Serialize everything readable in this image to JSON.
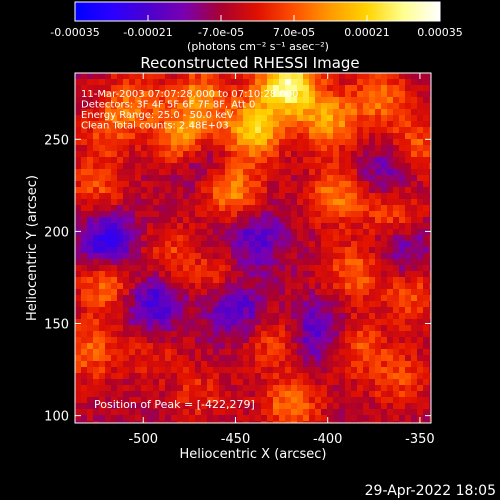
{
  "colorbar": {
    "ticks": [
      {
        "value": -0.00035,
        "label": "-0.00035"
      },
      {
        "value": -0.00021,
        "label": "-0.00021"
      },
      {
        "value": -7e-05,
        "label": "-7.0e-05"
      },
      {
        "value": 7e-05,
        "label": "7.0e-05"
      },
      {
        "value": 0.00021,
        "label": "0.00021"
      },
      {
        "value": 0.00035,
        "label": "0.00035"
      }
    ],
    "range": [
      -0.00035,
      0.00035
    ],
    "unit_label": "(photons cm⁻² s⁻¹ asec⁻²)",
    "colors": [
      "#0000ff",
      "#2a00ff",
      "#4b00d0",
      "#7a00b0",
      "#a80030",
      "#e01000",
      "#ff5000",
      "#ff9a00",
      "#ffd400",
      "#ffff90",
      "#ffffff"
    ]
  },
  "chart_data": {
    "type": "heatmap",
    "title": "Reconstructed RHESSI Image",
    "xlabel": "Heliocentric X (arcsec)",
    "ylabel": "Heliocentric Y (arcsec)",
    "xlim": [
      -537,
      -344
    ],
    "ylim": [
      96,
      286
    ],
    "xticks": [
      -500,
      -450,
      -400,
      -350
    ],
    "yticks": [
      100,
      150,
      200,
      250
    ],
    "annotations": [
      "11-Mar-2003 07:07:28.000 to 07:10:28.000",
      "Detectors: 3F 4F 5F 6F 7F 8F, Att 0",
      "Energy Range: 25.0 - 50.0 keV",
      "Clean     Total counts: 2.48E+03"
    ],
    "peak_label": "Position of Peak = [-422,279]",
    "peak": [
      -422,
      279
    ],
    "grid": false,
    "hot_spots": [
      {
        "x": -520,
        "y": 255,
        "v": 0.0001
      },
      {
        "x": -505,
        "y": 270,
        "v": 0.00015
      },
      {
        "x": -478,
        "y": 250,
        "v": 0.00022
      },
      {
        "x": -468,
        "y": 273,
        "v": 0.00018
      },
      {
        "x": -440,
        "y": 255,
        "v": 0.00026
      },
      {
        "x": -422,
        "y": 279,
        "v": 0.00035
      },
      {
        "x": -400,
        "y": 260,
        "v": 0.0002
      },
      {
        "x": -372,
        "y": 272,
        "v": 0.00016
      },
      {
        "x": -352,
        "y": 245,
        "v": 0.00014
      },
      {
        "x": -452,
        "y": 222,
        "v": 0.00019
      },
      {
        "x": -395,
        "y": 220,
        "v": 0.00017
      },
      {
        "x": -365,
        "y": 210,
        "v": 0.00013
      },
      {
        "x": -525,
        "y": 225,
        "v": 0.00012
      },
      {
        "x": -520,
        "y": 170,
        "v": 0.00016
      },
      {
        "x": -528,
        "y": 135,
        "v": 0.00014
      },
      {
        "x": -485,
        "y": 188,
        "v": 0.0001
      },
      {
        "x": -458,
        "y": 175,
        "v": 9e-05
      },
      {
        "x": -385,
        "y": 178,
        "v": 0.00014
      },
      {
        "x": -355,
        "y": 165,
        "v": 0.00012
      },
      {
        "x": -430,
        "y": 140,
        "v": 0.00011
      },
      {
        "x": -385,
        "y": 138,
        "v": 0.00013
      },
      {
        "x": -362,
        "y": 120,
        "v": 0.00011
      },
      {
        "x": -420,
        "y": 105,
        "v": 0.00016
      },
      {
        "x": -470,
        "y": 112,
        "v": 8e-05
      },
      {
        "x": -495,
        "y": 135,
        "v": 7e-05
      }
    ],
    "cold_spots": [
      {
        "x": -520,
        "y": 195,
        "v": -0.0002
      },
      {
        "x": -495,
        "y": 160,
        "v": -0.00018
      },
      {
        "x": -450,
        "y": 158,
        "v": -0.00016
      },
      {
        "x": -440,
        "y": 195,
        "v": -0.00014
      },
      {
        "x": -405,
        "y": 145,
        "v": -0.00015
      },
      {
        "x": -470,
        "y": 240,
        "v": -0.00012
      },
      {
        "x": -368,
        "y": 232,
        "v": -0.00013
      },
      {
        "x": -360,
        "y": 190,
        "v": -0.00011
      }
    ]
  },
  "footer": {
    "date": "29-Apr-2022 18:05"
  }
}
